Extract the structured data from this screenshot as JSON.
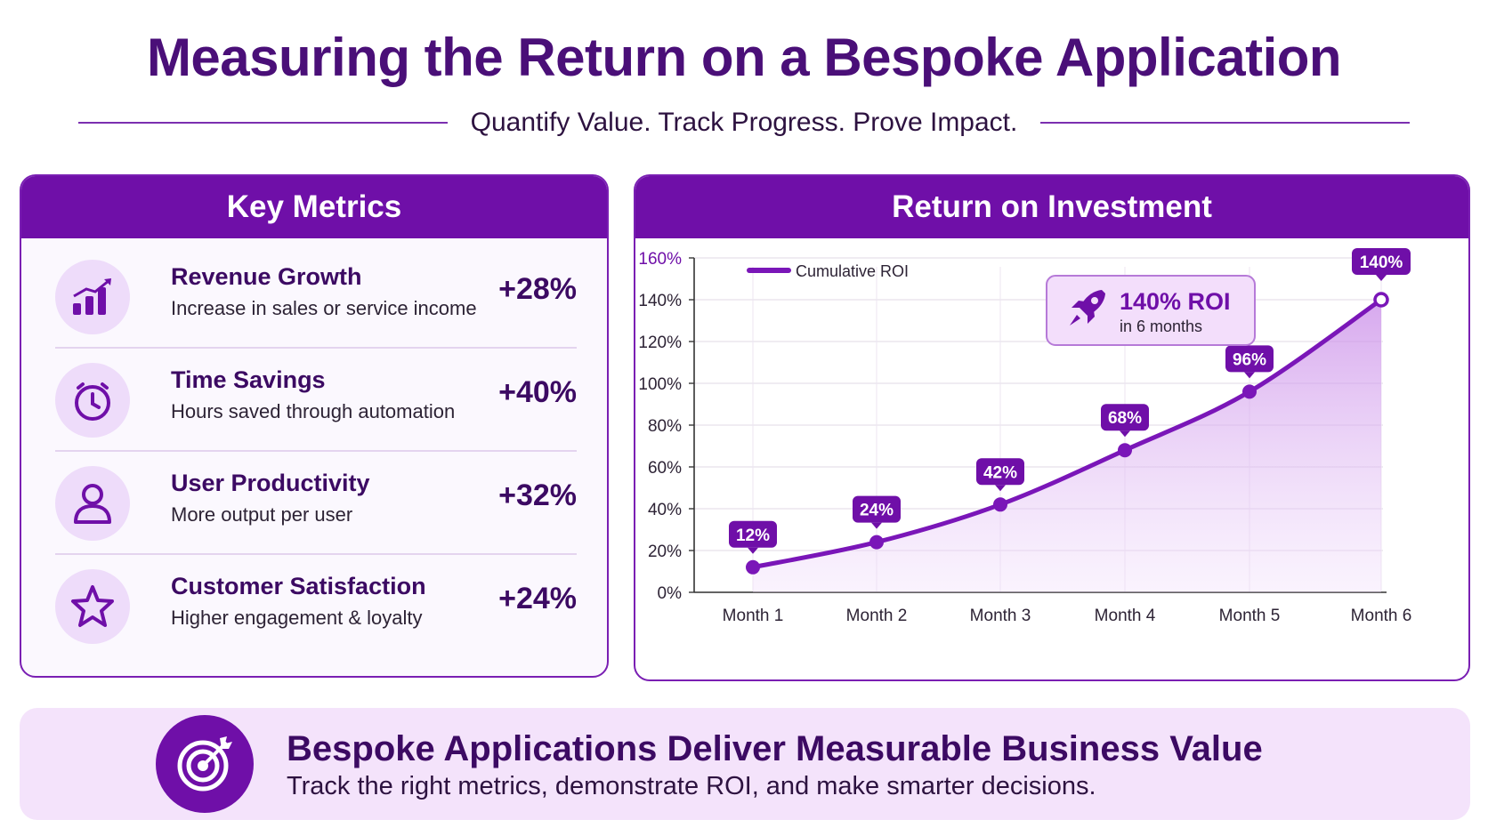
{
  "title": "Measuring the Return on a Bespoke Application",
  "subtitle": "Quantify Value. Track Progress. Prove Impact.",
  "metrics_panel": {
    "heading": "Key Metrics",
    "items": [
      {
        "name": "Revenue Growth",
        "desc": "Increase in sales or service income",
        "value": "+28%",
        "icon": "bar-chart-growth-icon"
      },
      {
        "name": "Time Savings",
        "desc": "Hours saved through automation",
        "value": "+40%",
        "icon": "stopwatch-icon"
      },
      {
        "name": "User Productivity",
        "desc": "More output per user",
        "value": "+32%",
        "icon": "user-icon"
      },
      {
        "name": "Customer Satisfaction",
        "desc": "Higher engagement & loyalty",
        "value": "+24%",
        "icon": "star-icon"
      }
    ]
  },
  "roi_panel": {
    "heading": "Return on Investment",
    "callout": {
      "headline": "140% ROI",
      "sub": "in 6 months",
      "icon": "rocket-icon"
    }
  },
  "chart_data": {
    "type": "area",
    "categories": [
      "Month 1",
      "Month 2",
      "Month 3",
      "Month 4",
      "Month 5",
      "Month 6"
    ],
    "series": [
      {
        "name": "Cumulative ROI",
        "values": [
          12,
          24,
          42,
          68,
          96,
          140
        ]
      }
    ],
    "data_labels": [
      "12%",
      "24%",
      "42%",
      "68%",
      "96%",
      "140%"
    ],
    "yticks": [
      "0%",
      "20%",
      "40%",
      "60%",
      "80%",
      "100%",
      "120%",
      "140%",
      "160%"
    ],
    "ylim": [
      0,
      160
    ],
    "grid": true,
    "legend": "top-left",
    "xlabel": "",
    "ylabel": ""
  },
  "banner": {
    "headline": "Bespoke Applications Deliver Measurable Business Value",
    "sub": "Track the right metrics, demonstrate ROI, and make smarter decisions.",
    "icon": "target-icon"
  },
  "colors": {
    "primary": "#6f0fa8",
    "dark": "#3c0a63",
    "tint": "#f4e3fb",
    "line": "#7a16b8"
  }
}
